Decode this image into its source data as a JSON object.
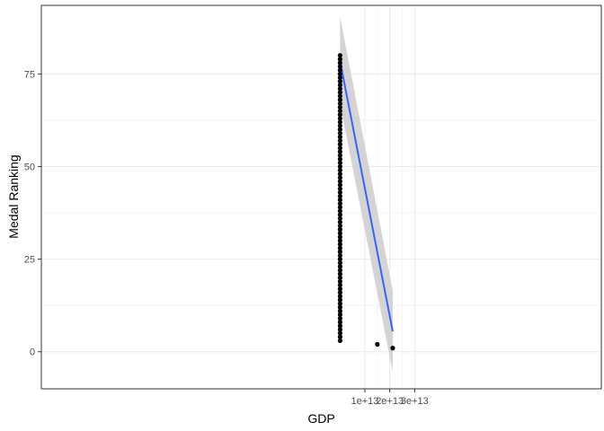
{
  "chart_data": {
    "type": "scatter",
    "title": "",
    "xlabel": "GDP",
    "ylabel": "Medal Ranking",
    "x_scale": "linear",
    "xlim": [
      -120000000000000.0,
      105000000000000.0
    ],
    "ylim": [
      -10,
      93.5
    ],
    "x_ticks": [
      {
        "value": 10000000000000.0,
        "label": "1e+13"
      },
      {
        "value": 20000000000000.0,
        "label": "2e+13"
      },
      {
        "value": 30000000000000.0,
        "label": "3e+13"
      }
    ],
    "y_ticks": [
      {
        "value": 0,
        "label": "0"
      },
      {
        "value": 25,
        "label": "25"
      },
      {
        "value": 50,
        "label": "50"
      },
      {
        "value": 75,
        "label": "75"
      }
    ],
    "grid": true,
    "legend": "none",
    "colors": {
      "points": "#000000",
      "trend_line": "#3366ff",
      "confidence_band": "#d4d4d4",
      "grid": "#ebebeb",
      "panel_border": "#333333"
    },
    "series": [
      {
        "points": [
          {
            "x": 17000000000.0,
            "y": 78
          },
          {
            "x": 19600000000.0,
            "y": 56
          },
          {
            "x": 21200000000.0,
            "y": 65
          },
          {
            "x": 24600000000.0,
            "y": 70
          },
          {
            "x": 25000000000.0,
            "y": 80
          },
          {
            "x": 25200000000.0,
            "y": 71
          },
          {
            "x": 25400000000.0,
            "y": 64
          },
          {
            "x": 25600000000.0,
            "y": 66
          },
          {
            "x": 24800000000.0,
            "y": 40
          },
          {
            "x": 25900000000.0,
            "y": 20
          },
          {
            "x": 26200000000.0,
            "y": 32
          },
          {
            "x": 26600000000.0,
            "y": 75
          },
          {
            "x": 27500000000.0,
            "y": 55
          },
          {
            "x": 27700000000.0,
            "y": 57
          },
          {
            "x": 27900000000.0,
            "y": 35
          },
          {
            "x": 28000000000.0,
            "y": 54
          },
          {
            "x": 28300000000.0,
            "y": 69
          },
          {
            "x": 28400000000.0,
            "y": 62
          },
          {
            "x": 28700000000.0,
            "y": 27
          },
          {
            "x": 28800000000.0,
            "y": 30
          },
          {
            "x": 28900000000.0,
            "y": 25
          },
          {
            "x": 29000000000.0,
            "y": 31
          },
          {
            "x": 29200000000.0,
            "y": 42
          },
          {
            "x": 29300000000.0,
            "y": 76
          },
          {
            "x": 29500000000.0,
            "y": 29
          },
          {
            "x": 29600000000.0,
            "y": 77
          },
          {
            "x": 29900000000.0,
            "y": 63
          },
          {
            "x": 30400000000.0,
            "y": 36
          },
          {
            "x": 30500000000.0,
            "y": 18
          },
          {
            "x": 30600000000.0,
            "y": 59
          },
          {
            "x": 30700000000.0,
            "y": 47
          },
          {
            "x": 30800000000.0,
            "y": 53
          },
          {
            "x": 30900000000.0,
            "y": 60
          },
          {
            "x": 31300000000.0,
            "y": 39
          },
          {
            "x": 31500000000.0,
            "y": 41
          },
          {
            "x": 31600000000.0,
            "y": 14
          },
          {
            "x": 31800000000.0,
            "y": 72
          },
          {
            "x": 32000000000.0,
            "y": 34
          },
          {
            "x": 32100000000.0,
            "y": 26
          },
          {
            "x": 32300000000.0,
            "y": 13
          },
          {
            "x": 32500000000.0,
            "y": 52
          },
          {
            "x": 32700000000.0,
            "y": 17
          },
          {
            "x": 32800000000.0,
            "y": 43
          },
          {
            "x": 33000000000.0,
            "y": 74
          },
          {
            "x": 33100000000.0,
            "y": 61
          },
          {
            "x": 33300000000.0,
            "y": 48
          },
          {
            "x": 33600000000.0,
            "y": 79
          },
          {
            "x": 33700000000.0,
            "y": 44
          },
          {
            "x": 33800000000.0,
            "y": 24
          },
          {
            "x": 33900000000.0,
            "y": 50
          },
          {
            "x": 34000000000.0,
            "y": 46
          },
          {
            "x": 34100000000.0,
            "y": 67
          },
          {
            "x": 34200000000.0,
            "y": 38
          },
          {
            "x": 34400000000.0,
            "y": 37
          },
          {
            "x": 34500000000.0,
            "y": 68
          },
          {
            "x": 34600000000.0,
            "y": 49
          },
          {
            "x": 33800000000.0,
            "y": 19
          },
          {
            "x": 35000000000.0,
            "y": 58
          },
          {
            "x": 35200000000.0,
            "y": 28
          },
          {
            "x": 35300000000.0,
            "y": 22
          },
          {
            "x": 35500000000.0,
            "y": 16
          },
          {
            "x": 36200000000.0,
            "y": 33
          },
          {
            "x": 36400000000.0,
            "y": 23
          },
          {
            "x": 37000000000.0,
            "y": 7
          },
          {
            "x": 37300000000.0,
            "y": 73
          },
          {
            "x": 37400000000.0,
            "y": 51
          },
          {
            "x": 37900000000.0,
            "y": 21
          },
          {
            "x": 38100000000.0,
            "y": 6
          },
          {
            "x": 38300000000.0,
            "y": 12
          },
          {
            "x": 38400000000.0,
            "y": 5
          },
          {
            "x": 38600000000.0,
            "y": 15
          },
          {
            "x": 38700000000.0,
            "y": 11
          },
          {
            "x": 39100000000.0,
            "y": 10
          },
          {
            "x": 39600000000.0,
            "y": 8
          },
          {
            "x": 39700000000.0,
            "y": 45
          },
          {
            "x": 39800000000.0,
            "y": 4
          },
          {
            "x": 40600000000.0,
            "y": 9
          },
          {
            "x": 41200000000.0,
            "y": 3
          },
          {
            "x": 15000000000000.0,
            "y": 2
          },
          {
            "x": 21200000000000.0,
            "y": 1
          }
        ]
      }
    ],
    "trend": {
      "method": "linear fit with confidence band",
      "start": {
        "x": 17000000000.0,
        "y": 78.5,
        "lower": 67,
        "upper": 90.5
      },
      "end": {
        "x": 21200000000000.0,
        "y": 5.5,
        "lower": -5.5,
        "upper": 16.5
      }
    }
  }
}
